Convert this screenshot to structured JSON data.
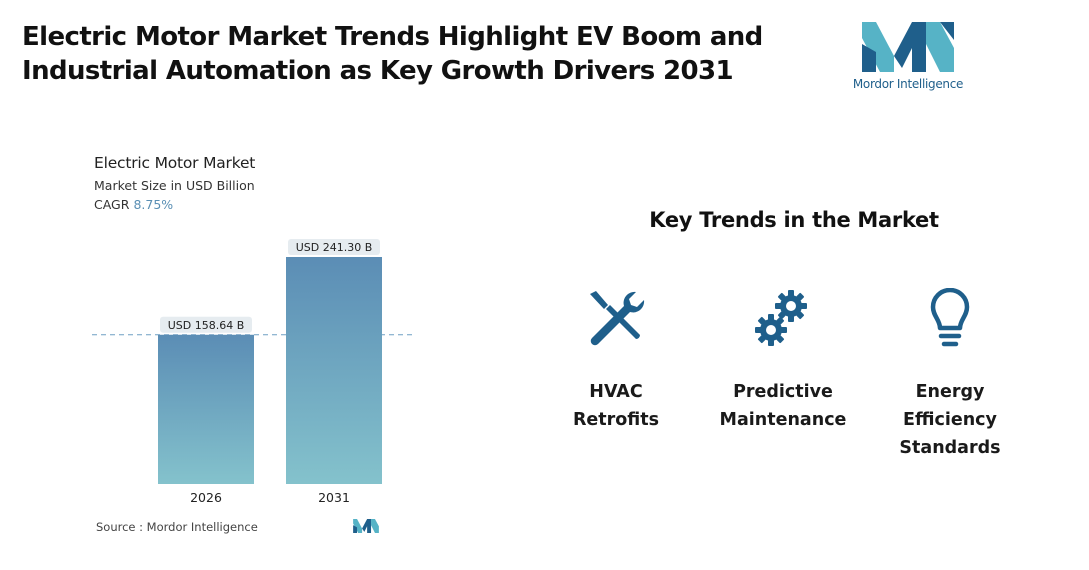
{
  "header": {
    "title_line1": "Electric Motor Market Trends Highlight EV Boom and",
    "title_line2": "Industrial Automation as Key Growth Drivers 2031",
    "brand_name": "Mordor Intelligence"
  },
  "colors": {
    "bar_top": "#5b8db5",
    "bar_bottom": "#84c2cc",
    "reference_line": "#6f9fc4",
    "logo_dark": "#1f5f8b",
    "logo_light": "#56b3c6"
  },
  "chart_data": {
    "type": "bar",
    "title": "Electric Motor Market",
    "subtitle": "Market Size in USD Billion",
    "cagr_label": "CAGR",
    "cagr_value": "8.75%",
    "categories": [
      "2026",
      "2031"
    ],
    "values": [
      158.64,
      241.3
    ],
    "data_labels": [
      "USD 158.64 B",
      "USD 241.30 B"
    ],
    "ylim": [
      0,
      241.3
    ],
    "grid": false,
    "reference_line": "dashed line at 2026 value",
    "source": "Source :  Mordor Intelligence"
  },
  "trends": {
    "heading": "Key Trends in the Market",
    "items": [
      {
        "label": "HVAC\nRetrofits",
        "icon": "tools-icon"
      },
      {
        "label": "Predictive\nMaintenance",
        "icon": "gears-icon"
      },
      {
        "label": "Energy\nEfficiency\nStandards",
        "icon": "lightbulb-icon"
      }
    ]
  }
}
